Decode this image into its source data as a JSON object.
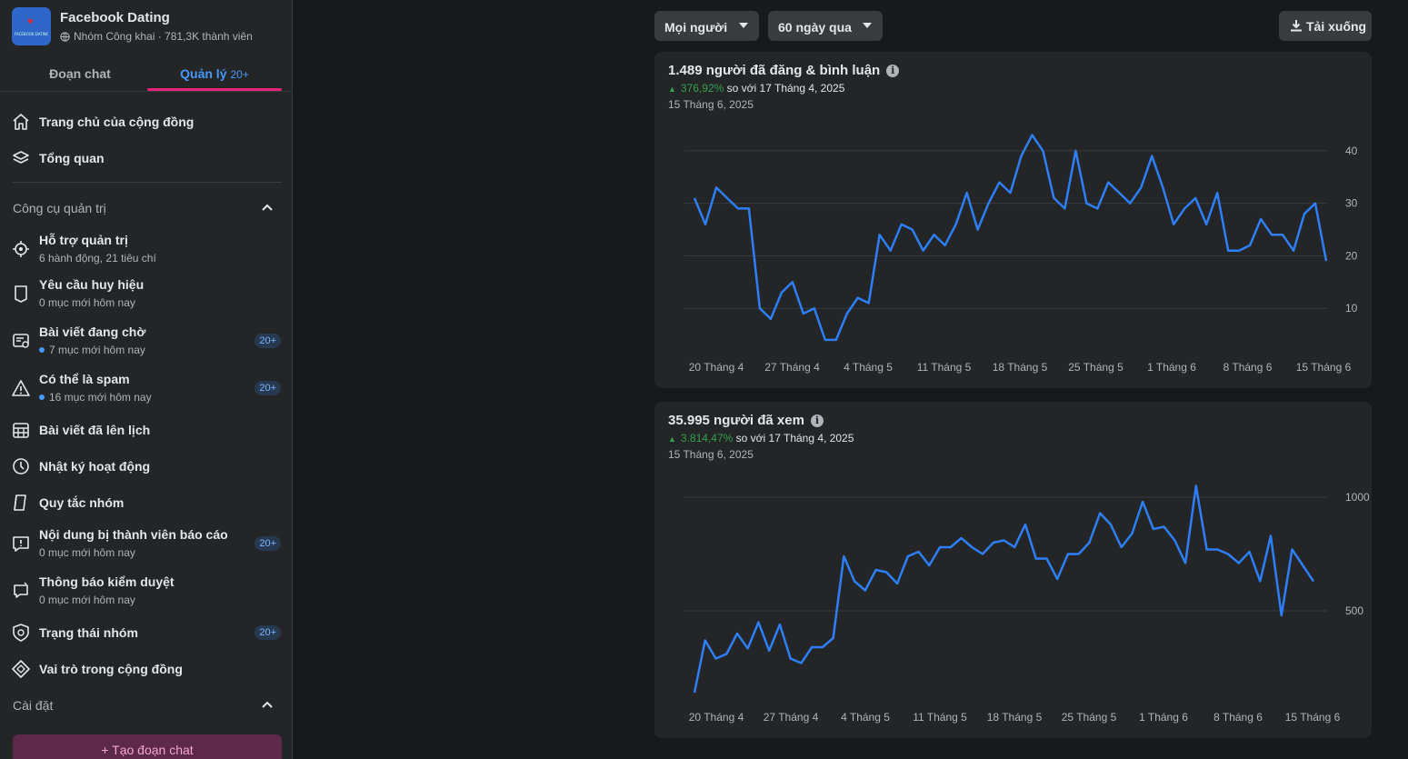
{
  "group": {
    "name": "Facebook Dating",
    "meta": "Nhóm Công khai · 781,3K thành viên",
    "avatar_text": "FACEBOOK DATING"
  },
  "tabs": {
    "chat": "Đoạn chat",
    "manage": "Quản lý",
    "manage_count": "20+"
  },
  "nav_top": [
    {
      "label": "Trang chủ của cộng đồng",
      "icon": "home-icon"
    },
    {
      "label": "Tổng quan",
      "icon": "layers-icon"
    }
  ],
  "admin_tools": {
    "title": "Công cụ quản trị",
    "items": [
      {
        "label": "Hỗ trợ quản trị",
        "sub": "6 hành động, 21 tiêu chí",
        "icon": "admin-assist-icon"
      },
      {
        "label": "Yêu cầu huy hiệu",
        "sub": "0 mục mới hôm nay",
        "icon": "badge-icon"
      },
      {
        "label": "Bài viết đang chờ",
        "sub": "7 mục mới hôm nay",
        "icon": "pending-posts-icon",
        "badge": "20+",
        "dot": true
      },
      {
        "label": "Có thể là spam",
        "sub": "16 mục mới hôm nay",
        "icon": "warning-icon",
        "badge": "20+",
        "dot": true
      },
      {
        "label": "Bài viết đã lên lịch",
        "icon": "calendar-icon"
      },
      {
        "label": "Nhật ký hoạt động",
        "icon": "clock-icon"
      },
      {
        "label": "Quy tắc nhóm",
        "icon": "rules-book-icon"
      },
      {
        "label": "Nội dung bị thành viên báo cáo",
        "sub": "0 mục mới hôm nay",
        "icon": "report-icon",
        "badge": "20+"
      },
      {
        "label": "Thông báo kiểm duyệt",
        "sub": "0 mục mới hôm nay",
        "icon": "moderation-alert-icon"
      },
      {
        "label": "Trạng thái nhóm",
        "icon": "shield-icon",
        "badge": "20+"
      },
      {
        "label": "Vai trò trong cộng đồng",
        "icon": "diamond-icon"
      }
    ]
  },
  "settings": {
    "title": "Cài đặt"
  },
  "create_chat": "+ Tạo đoạn chat",
  "filters": {
    "audience": "Mọi người",
    "range": "60 ngày qua",
    "download": "Tải xuống"
  },
  "colors": {
    "line": "#2d7ff9",
    "accent_pink": "#e8237a",
    "positive": "#31a24c"
  },
  "chart_data": [
    {
      "type": "line",
      "title": "1.489 người đã đăng & bình luận",
      "delta_pct": "376,92%",
      "delta_text": "so với 17 Tháng 4, 2025",
      "date": "15 Tháng 6, 2025",
      "x_tick_labels": [
        "20 Tháng 4",
        "27 Tháng 4",
        "4 Tháng 5",
        "11 Tháng 5",
        "18 Tháng 5",
        "25 Tháng 5",
        "1 Tháng 6",
        "8 Tháng 6",
        "15 Tháng 6"
      ],
      "y_ticks": [
        10,
        20,
        30,
        40
      ],
      "ylim": [
        0,
        45
      ],
      "values": [
        31,
        26,
        33,
        31,
        29,
        29,
        10,
        8,
        13,
        15,
        9,
        10,
        4,
        4,
        9,
        12,
        11,
        24,
        21,
        26,
        25,
        21,
        24,
        22,
        26,
        32,
        25,
        30,
        34,
        32,
        39,
        43,
        40,
        31,
        29,
        40,
        30,
        29,
        34,
        32,
        30,
        33,
        39,
        33,
        26,
        29,
        31,
        26,
        32,
        21,
        21,
        22,
        27,
        24,
        24,
        21,
        28,
        30,
        19
      ]
    },
    {
      "type": "line",
      "title": "35.995 người đã xem",
      "delta_pct": "3.814,47%",
      "delta_text": "so với 17 Tháng 4, 2025",
      "date": "15 Tháng 6, 2025",
      "x_tick_labels": [
        "20 Tháng 4",
        "27 Tháng 4",
        "4 Tháng 5",
        "11 Tháng 5",
        "18 Tháng 5",
        "25 Tháng 5",
        "1 Tháng 6",
        "8 Tháng 6",
        "15 Tháng 6"
      ],
      "y_ticks": [
        500,
        1000
      ],
      "ylim": [
        100,
        1100
      ],
      "values": [
        140,
        370,
        290,
        310,
        400,
        335,
        450,
        325,
        440,
        290,
        270,
        340,
        340,
        380,
        740,
        630,
        590,
        680,
        670,
        620,
        740,
        760,
        700,
        780,
        780,
        820,
        780,
        750,
        800,
        810,
        780,
        880,
        730,
        730,
        640,
        750,
        750,
        800,
        930,
        880,
        780,
        840,
        980,
        860,
        870,
        810,
        710,
        1050,
        770,
        770,
        750,
        710,
        760,
        630,
        830,
        480,
        770,
        700,
        630
      ]
    }
  ]
}
